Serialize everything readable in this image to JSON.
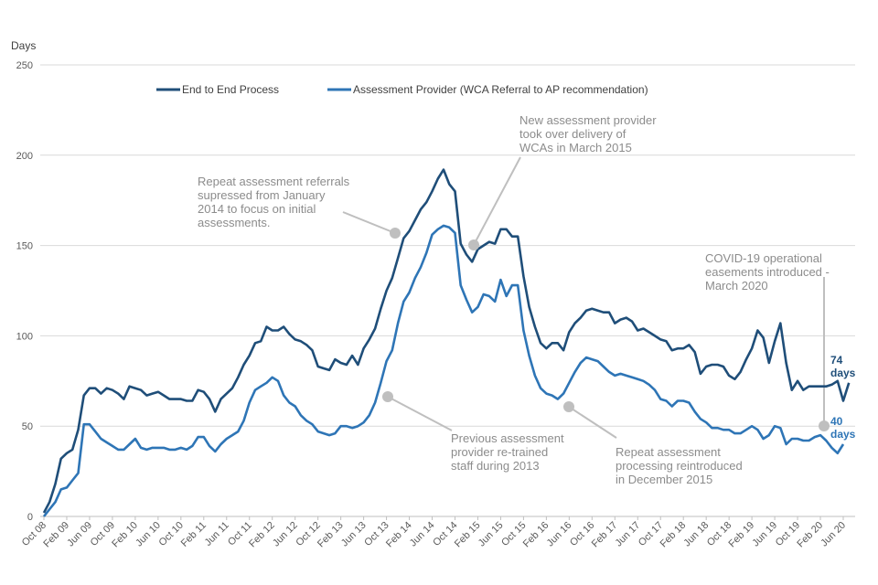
{
  "chart_data": {
    "type": "line",
    "title": "",
    "ylabel": "Days",
    "xlabel": "",
    "ylim": [
      0,
      250
    ],
    "yticks": [
      0,
      50,
      100,
      150,
      200,
      250
    ],
    "grid": true,
    "legend_position": "top-center",
    "start_month": "Oct 08",
    "x_tick_labels": [
      "Oct 08",
      "Feb 09",
      "Jun 09",
      "Oct 09",
      "Feb 10",
      "Jun 10",
      "Oct 10",
      "Feb 11",
      "Jun 11",
      "Oct 11",
      "Feb 12",
      "Jun 12",
      "Oct 12",
      "Feb 13",
      "Jun 13",
      "Oct 13",
      "Feb 14",
      "Jun 14",
      "Oct 14",
      "Feb 15",
      "Jun 15",
      "Oct 15",
      "Feb 16",
      "Jun 16",
      "Oct 16",
      "Feb 17",
      "Jun 17",
      "Oct 17",
      "Feb 18",
      "Jun 18",
      "Oct 18",
      "Feb 19",
      "Jun 19",
      "Oct 19",
      "Feb 20",
      "Jun 20"
    ],
    "series": [
      {
        "name": "End to End Process",
        "color": "#1f4e79",
        "end_label": [
          "74",
          "days"
        ],
        "values": [
          2,
          8,
          18,
          32,
          35,
          37,
          48,
          67,
          71,
          71,
          68,
          71,
          70,
          68,
          65,
          72,
          71,
          70,
          67,
          68,
          69,
          67,
          65,
          65,
          65,
          64,
          64,
          70,
          69,
          65,
          58,
          65,
          68,
          71,
          77,
          84,
          89,
          96,
          97,
          105,
          103,
          103,
          105,
          101,
          98,
          97,
          95,
          92,
          83,
          82,
          81,
          87,
          85,
          84,
          89,
          84,
          93,
          98,
          104,
          115,
          125,
          132,
          143,
          154,
          158,
          164,
          170,
          174,
          180,
          187,
          192,
          184,
          180,
          151,
          145,
          141,
          148,
          150,
          152,
          151,
          159,
          159,
          155,
          155,
          133,
          116,
          105,
          96,
          93,
          96,
          96,
          92,
          102,
          107,
          110,
          114,
          115,
          114,
          113,
          113,
          107,
          109,
          110,
          108,
          103,
          104,
          102,
          100,
          98,
          97,
          92,
          93,
          93,
          95,
          91,
          79,
          83,
          84,
          84,
          83,
          78,
          76,
          80,
          87,
          93,
          103,
          99,
          85,
          97,
          107,
          85,
          70,
          75,
          70,
          72,
          72,
          72,
          72,
          73,
          75,
          64,
          74
        ],
        "last_value": 74
      },
      {
        "name": "Assessment Provider (WCA Referral to AP recommendation)",
        "color": "#2e75b6",
        "end_label": [
          "40",
          "days"
        ],
        "values": [
          0,
          4,
          8,
          15,
          16,
          20,
          24,
          51,
          51,
          47,
          43,
          41,
          39,
          37,
          37,
          40,
          43,
          38,
          37,
          38,
          38,
          38,
          37,
          37,
          38,
          37,
          39,
          44,
          44,
          39,
          36,
          40,
          43,
          45,
          47,
          53,
          63,
          70,
          72,
          74,
          77,
          75,
          67,
          63,
          61,
          56,
          53,
          51,
          47,
          46,
          45,
          46,
          50,
          50,
          49,
          50,
          52,
          56,
          63,
          74,
          86,
          92,
          107,
          119,
          124,
          132,
          138,
          146,
          156,
          159,
          161,
          160,
          157,
          128,
          120,
          113,
          116,
          123,
          122,
          119,
          131,
          122,
          128,
          128,
          103,
          89,
          78,
          71,
          68,
          67,
          65,
          68,
          74,
          80,
          85,
          88,
          87,
          86,
          83,
          80,
          78,
          79,
          78,
          77,
          76,
          75,
          73,
          70,
          65,
          64,
          61,
          64,
          64,
          63,
          58,
          54,
          52,
          49,
          49,
          48,
          48,
          46,
          46,
          48,
          50,
          48,
          43,
          45,
          50,
          49,
          40,
          43,
          43,
          42,
          42,
          44,
          45,
          42,
          38,
          35,
          40
        ],
        "last_value": 40
      }
    ],
    "annotations": [
      {
        "id": "repeat-suppressed",
        "lines": [
          "Repeat assessment referrals",
          "supressed from January",
          "2014 to focus on initial",
          "assessments."
        ]
      },
      {
        "id": "new-provider",
        "lines": [
          "New assessment provider",
          "took over delivery  of",
          "WCAs in March 2015"
        ]
      },
      {
        "id": "retrained",
        "lines": [
          "Previous assessment",
          "provider re-trained",
          "staff during 2013"
        ]
      },
      {
        "id": "repeat-reintroduced",
        "lines": [
          "Repeat assessment",
          "processing reintroduced",
          "in December 2015"
        ]
      },
      {
        "id": "covid",
        "lines": [
          "COVID-19 operational",
          "easements introduced -",
          "March 2020"
        ]
      }
    ]
  }
}
